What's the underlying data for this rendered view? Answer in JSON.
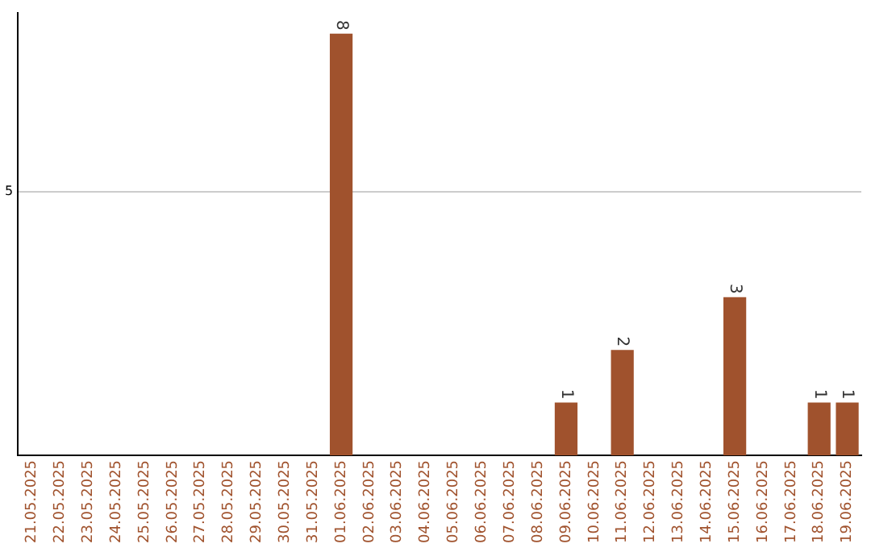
{
  "chart_data": {
    "type": "bar",
    "categories": [
      "21.05.2025",
      "22.05.2025",
      "23.05.2025",
      "24.05.2025",
      "25.05.2025",
      "26.05.2025",
      "27.05.2025",
      "28.05.2025",
      "29.05.2025",
      "30.05.2025",
      "31.05.2025",
      "01.06.2025",
      "02.06.2025",
      "03.06.2025",
      "04.06.2025",
      "05.06.2025",
      "06.06.2025",
      "07.06.2025",
      "08.06.2025",
      "09.06.2025",
      "10.06.2025",
      "11.06.2025",
      "12.06.2025",
      "13.06.2025",
      "14.06.2025",
      "15.06.2025",
      "16.06.2025",
      "17.06.2025",
      "18.06.2025",
      "19.06.2025"
    ],
    "values": [
      0,
      0,
      0,
      0,
      0,
      0,
      0,
      0,
      0,
      0,
      0,
      8,
      0,
      0,
      0,
      0,
      0,
      0,
      0,
      1,
      0,
      2,
      0,
      0,
      0,
      3,
      0,
      0,
      1,
      1
    ],
    "value_labels": [
      null,
      null,
      null,
      null,
      null,
      null,
      null,
      null,
      null,
      null,
      null,
      "8",
      null,
      null,
      null,
      null,
      null,
      null,
      null,
      "1",
      null,
      "2",
      null,
      null,
      null,
      "3",
      null,
      null,
      "1",
      "1"
    ],
    "color": "#a0522d",
    "ylim": [
      0,
      8.4
    ],
    "yticks": [
      5
    ],
    "grid": "y"
  }
}
